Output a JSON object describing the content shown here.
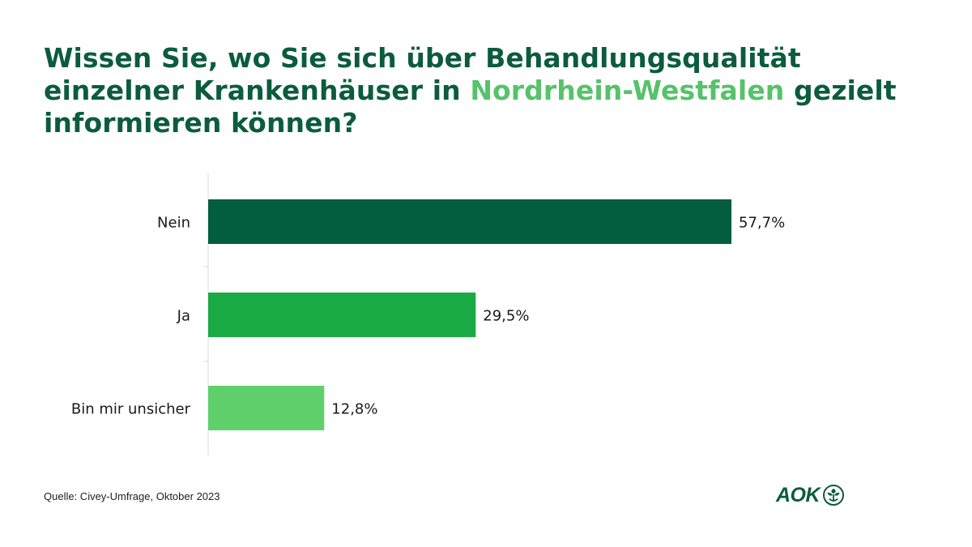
{
  "title": {
    "before": "Wissen Sie, wo Sie sich über Behandlungsqualität einzelner Krankenhäuser in ",
    "highlight": "Nordrhein-Westfalen",
    "after": " gezielt informieren können?"
  },
  "chart_data": {
    "type": "bar",
    "orientation": "horizontal",
    "categories": [
      "Nein",
      "Ja",
      "Bin mir unsicher"
    ],
    "values": [
      57.7,
      29.5,
      12.8
    ],
    "value_labels": [
      "57,7%",
      "29,5%",
      "12,8%"
    ],
    "colors": [
      "#025e3f",
      "#1aaa43",
      "#5fd06c"
    ],
    "xlim": [
      0,
      100
    ],
    "grid": false,
    "legend": "none"
  },
  "source": "Quelle: Civey-Umfrage,  Oktober 2023",
  "logo": {
    "text": "AOK",
    "icon": "aok-tree-icon",
    "color": "#0b5c3d"
  }
}
